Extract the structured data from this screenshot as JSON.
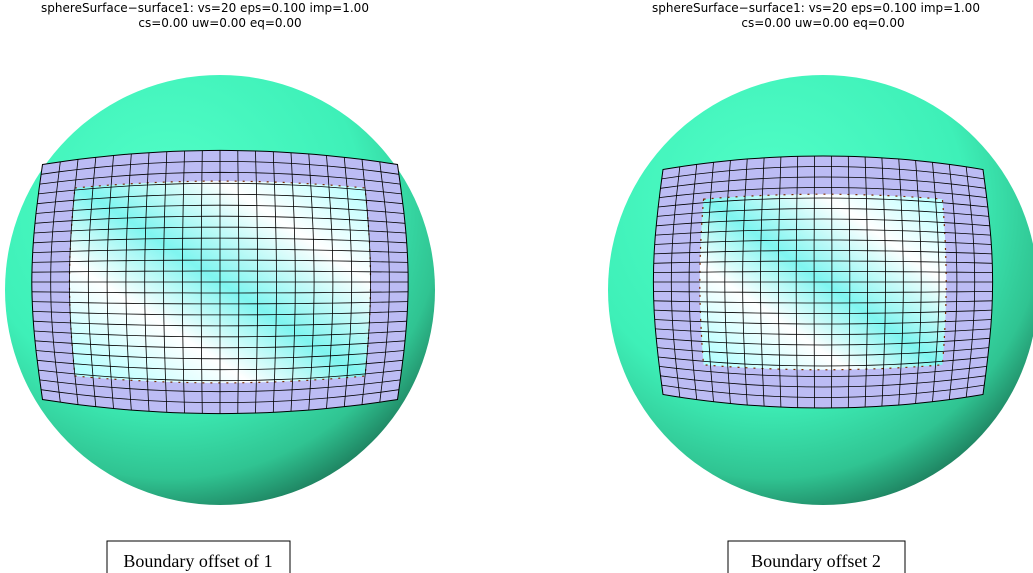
{
  "panels": [
    {
      "title_line1": "sphereSurface−surface1:  vs=20  eps=0.100  imp=1.00",
      "title_line2": "cs=0.00  uw=0.00  eq=0.00",
      "caption": "Boundary offset of 1"
    },
    {
      "title_line1": "sphereSurface−surface1:  vs=20  eps=0.100  imp=1.00",
      "title_line2": "cs=0.00  uw=0.00  eq=0.00",
      "caption": "Boundary offset 2"
    }
  ]
}
